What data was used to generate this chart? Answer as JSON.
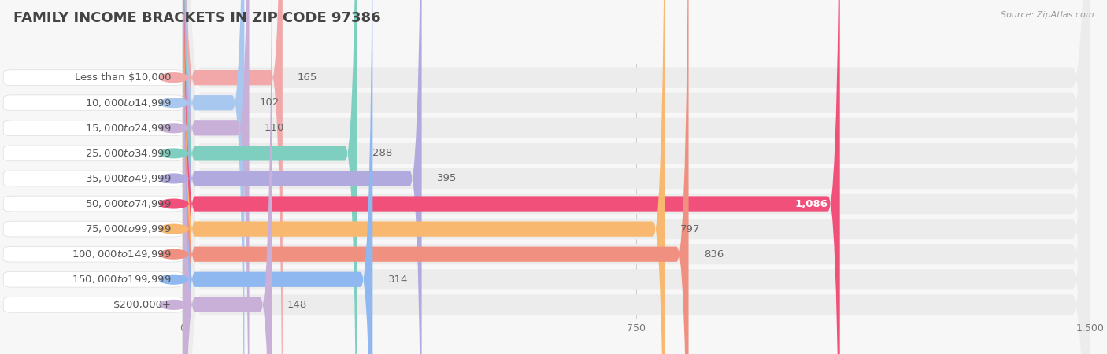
{
  "title": "FAMILY INCOME BRACKETS IN ZIP CODE 97386",
  "source": "Source: ZipAtlas.com",
  "categories": [
    "Less than $10,000",
    "$10,000 to $14,999",
    "$15,000 to $24,999",
    "$25,000 to $34,999",
    "$35,000 to $49,999",
    "$50,000 to $74,999",
    "$75,000 to $99,999",
    "$100,000 to $149,999",
    "$150,000 to $199,999",
    "$200,000+"
  ],
  "values": [
    165,
    102,
    110,
    288,
    395,
    1086,
    797,
    836,
    314,
    148
  ],
  "bar_colors": [
    "#F2A8A8",
    "#A8C8F0",
    "#C8B0D8",
    "#7ECFC0",
    "#B0AADE",
    "#F0507A",
    "#F8B870",
    "#F09080",
    "#90B8F0",
    "#C8B0D8"
  ],
  "xlim": [
    0,
    1500
  ],
  "xticks": [
    0,
    750,
    1500
  ],
  "background_color": "#f7f7f7",
  "row_bg_color": "#ececec",
  "row_bg_light": "#f2f2f2",
  "title_fontsize": 13,
  "label_fontsize": 9.5,
  "value_fontsize": 9.5,
  "value_inside_color": "#ffffff",
  "value_outside_color": "#666666",
  "label_text_color": "#555555"
}
